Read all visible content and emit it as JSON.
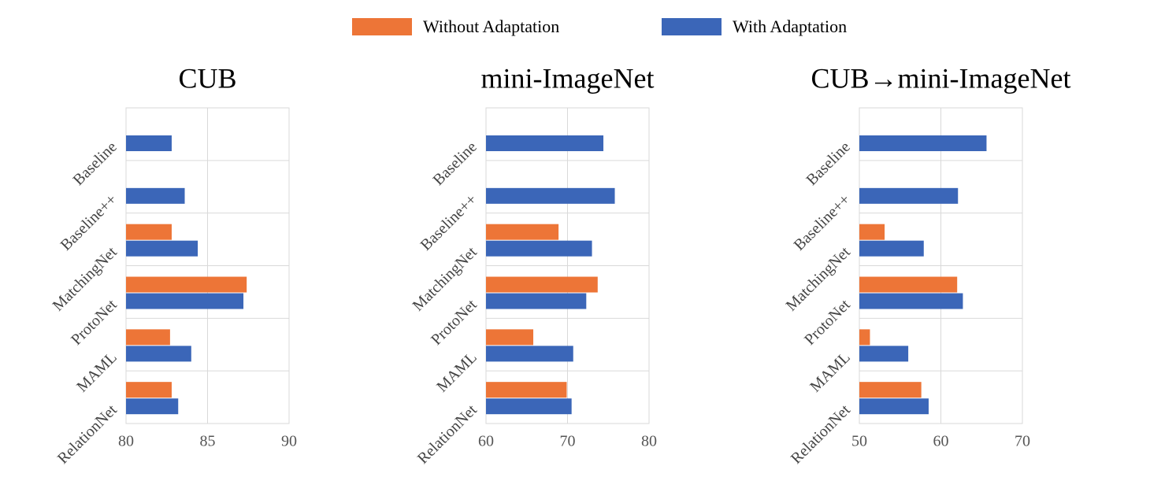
{
  "chart_data": [
    {
      "type": "barh",
      "title": "CUB",
      "categories": [
        "Baseline",
        "Baseline++",
        "MatchingNet",
        "ProtoNet",
        "MAML",
        "RelationNet"
      ],
      "series": [
        {
          "name": "Without Adaptation",
          "color": "#ed7537",
          "values": [
            null,
            null,
            82.8,
            87.4,
            82.7,
            82.8
          ]
        },
        {
          "name": "With Adaptation",
          "color": "#3b66b8",
          "values": [
            82.8,
            83.6,
            84.4,
            87.2,
            84.0,
            83.2
          ]
        }
      ],
      "xlim": [
        80,
        90
      ],
      "xticks": [
        80,
        85,
        90
      ],
      "grid": true
    },
    {
      "type": "barh",
      "title": "mini-ImageNet",
      "categories": [
        "Baseline",
        "Baseline++",
        "MatchingNet",
        "ProtoNet",
        "MAML",
        "RelationNet"
      ],
      "series": [
        {
          "name": "Without Adaptation",
          "color": "#ed7537",
          "values": [
            null,
            null,
            68.9,
            73.7,
            65.8,
            69.9
          ]
        },
        {
          "name": "With Adaptation",
          "color": "#3b66b8",
          "values": [
            74.4,
            75.8,
            73.0,
            72.3,
            70.7,
            70.5
          ]
        }
      ],
      "xlim": [
        60,
        80
      ],
      "xticks": [
        60,
        70,
        80
      ],
      "grid": true
    },
    {
      "type": "barh",
      "title": "CUB→mini-ImageNet",
      "categories": [
        "Baseline",
        "Baseline++",
        "MatchingNet",
        "ProtoNet",
        "MAML",
        "RelationNet"
      ],
      "series": [
        {
          "name": "Without Adaptation",
          "color": "#ed7537",
          "values": [
            null,
            null,
            53.1,
            62.0,
            51.3,
            57.6
          ]
        },
        {
          "name": "With Adaptation",
          "color": "#3b66b8",
          "values": [
            65.6,
            62.1,
            57.9,
            62.7,
            56.0,
            58.5
          ]
        }
      ],
      "xlim": [
        50,
        70
      ],
      "xticks": [
        50,
        60,
        70
      ],
      "grid": true
    }
  ]
}
